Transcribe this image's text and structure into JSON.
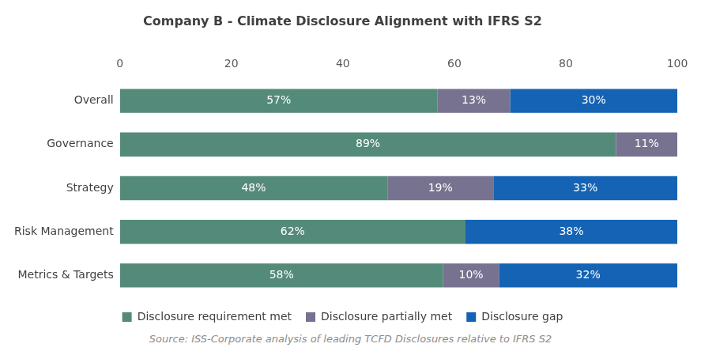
{
  "chart_data": {
    "type": "bar",
    "title": "Company B - Climate Disclosure Alignment with IFRS S2",
    "source": "Source: ISS-Corporate analysis of leading TCFD Disclosures relative to IFRS S2",
    "orientation": "horizontal",
    "stacked": true,
    "data_labels": true,
    "grid": false,
    "legend": "bottom",
    "categories": [
      "Overall",
      "Governance",
      "Strategy",
      "Risk Management",
      "Metrics & Targets"
    ],
    "series": [
      {
        "name": "Disclosure requirement met",
        "color": "#548a79",
        "values": [
          57,
          89,
          48,
          62,
          58
        ],
        "value_labels": [
          "57%",
          "89%",
          "48%",
          "62%",
          "58%"
        ]
      },
      {
        "name": "Disclosure partially met",
        "color": "#77728f",
        "values": [
          13,
          11,
          19,
          null,
          10
        ],
        "value_labels": [
          "13%",
          "11%",
          "19%",
          null,
          "10%"
        ]
      },
      {
        "name": "Disclosure gap",
        "color": "#1463b4",
        "values": [
          30,
          null,
          33,
          38,
          32
        ],
        "value_labels": [
          "30%",
          null,
          "33%",
          "38%",
          "32%"
        ]
      }
    ],
    "xlim": [
      0,
      100
    ],
    "xticks": [
      0,
      20,
      40,
      60,
      80,
      100
    ]
  }
}
